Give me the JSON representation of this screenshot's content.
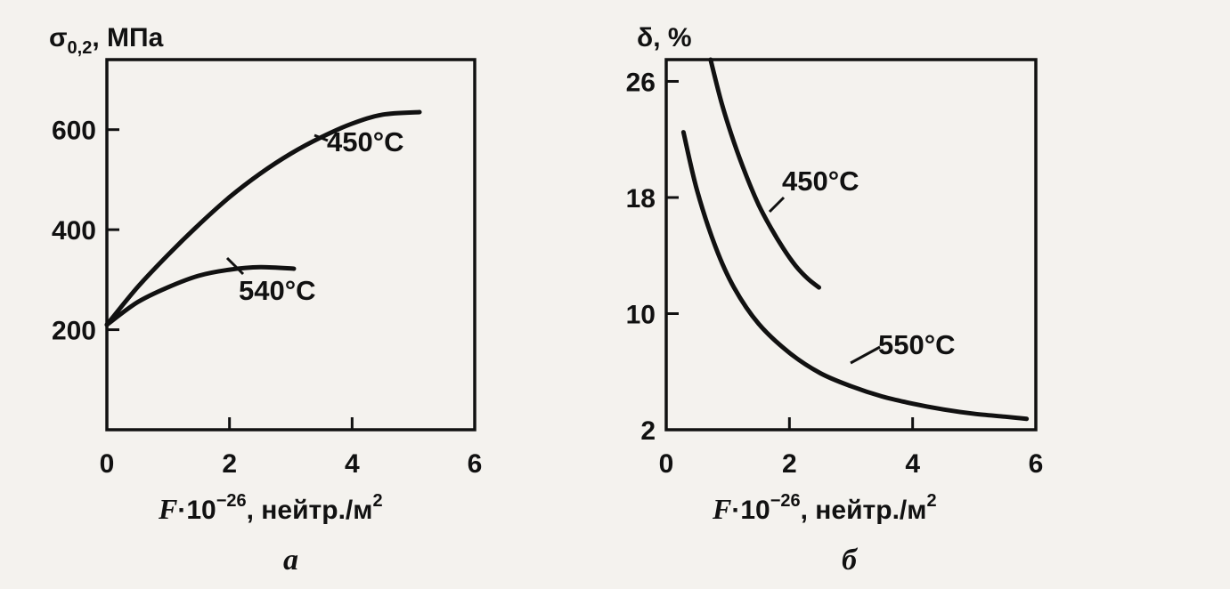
{
  "chart_data": [
    {
      "type": "line",
      "panel_label": "а",
      "ylabel_main": "σ",
      "ylabel_sub": "0,2",
      "ylabel_unit": ", МПа",
      "xlabel_var": "F",
      "xlabel_mid": "·10",
      "xlabel_exp": "−26",
      "xlabel_unit": ", нейтр./м",
      "xlabel_unit_exp": "2",
      "xlim": [
        0,
        6
      ],
      "ylim": [
        0,
        740
      ],
      "x_ticks": [
        0,
        2,
        4,
        6
      ],
      "y_ticks": [
        200,
        400,
        600
      ],
      "grid": false,
      "series": [
        {
          "name": "450°C",
          "x": [
            0,
            0.5,
            1,
            1.5,
            2,
            2.5,
            3,
            3.5,
            4,
            4.5,
            5.1
          ],
          "y": [
            210,
            285,
            350,
            410,
            465,
            512,
            552,
            585,
            612,
            630,
            635
          ]
        },
        {
          "name": "540°C",
          "x": [
            0,
            0.5,
            1,
            1.5,
            2,
            2.5,
            3.05
          ],
          "y": [
            210,
            255,
            285,
            308,
            320,
            325,
            322
          ]
        }
      ]
    },
    {
      "type": "line",
      "panel_label": "б",
      "ylabel_main": "δ",
      "ylabel_unit": ",  %",
      "xlabel_var": "F",
      "xlabel_mid": "·10",
      "xlabel_exp": "−26",
      "xlabel_unit": ", нейтр./м",
      "xlabel_unit_exp": "2",
      "xlim": [
        0,
        6
      ],
      "ylim": [
        2,
        27.5
      ],
      "x_ticks": [
        0,
        2,
        4,
        6
      ],
      "y_ticks": [
        2,
        10,
        18,
        26
      ],
      "grid": false,
      "series": [
        {
          "name": "450°C",
          "x": [
            0.72,
            0.9,
            1.1,
            1.3,
            1.5,
            1.7,
            1.9,
            2.1,
            2.3,
            2.48
          ],
          "y": [
            27.5,
            24.5,
            21.8,
            19.5,
            17.5,
            15.9,
            14.5,
            13.3,
            12.4,
            11.8
          ]
        },
        {
          "name": "550°C",
          "x": [
            0.28,
            0.5,
            0.8,
            1.1,
            1.5,
            2,
            2.5,
            3,
            3.5,
            4,
            4.5,
            5,
            5.5,
            5.85
          ],
          "y": [
            22.5,
            18.5,
            14.6,
            11.8,
            9.3,
            7.3,
            5.9,
            5,
            4.3,
            3.8,
            3.4,
            3.1,
            2.9,
            2.75
          ]
        }
      ]
    }
  ]
}
